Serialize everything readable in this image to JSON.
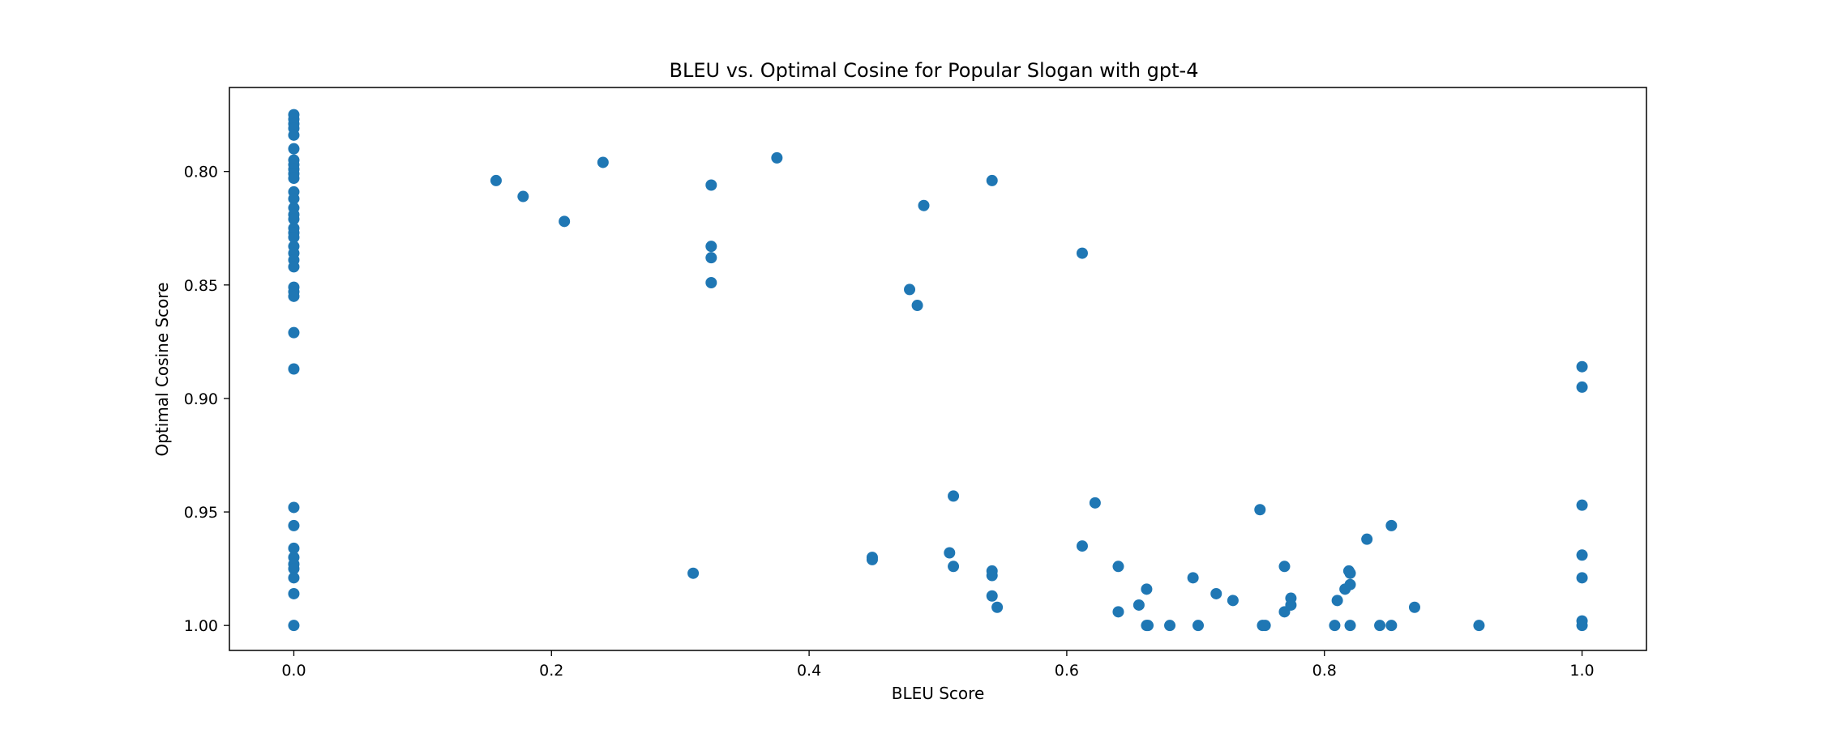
{
  "chart_data": {
    "type": "scatter",
    "title": "BLEU vs. Optimal Cosine for Popular Slogan with gpt-4",
    "xlabel": "BLEU Score",
    "ylabel": "Optimal Cosine Score",
    "xlim": [
      -0.05,
      1.05
    ],
    "ylim": [
      1.011,
      0.763
    ],
    "y_inverted": true,
    "grid": false,
    "point_color": "#1f77b4",
    "x_ticks": [
      {
        "value": 0.0,
        "label": "0.0"
      },
      {
        "value": 0.2,
        "label": "0.2"
      },
      {
        "value": 0.4,
        "label": "0.4"
      },
      {
        "value": 0.6,
        "label": "0.6"
      },
      {
        "value": 0.8,
        "label": "0.8"
      },
      {
        "value": 1.0,
        "label": "1.0"
      }
    ],
    "y_ticks": [
      {
        "value": 0.8,
        "label": "0.80"
      },
      {
        "value": 0.85,
        "label": "0.85"
      },
      {
        "value": 0.9,
        "label": "0.90"
      },
      {
        "value": 0.95,
        "label": "0.95"
      },
      {
        "value": 1.0,
        "label": "1.00"
      }
    ],
    "points": [
      [
        0.0,
        0.775
      ],
      [
        0.0,
        0.777
      ],
      [
        0.0,
        0.779
      ],
      [
        0.0,
        0.781
      ],
      [
        0.0,
        0.784
      ],
      [
        0.0,
        0.79
      ],
      [
        0.0,
        0.795
      ],
      [
        0.0,
        0.797
      ],
      [
        0.0,
        0.799
      ],
      [
        0.0,
        0.801
      ],
      [
        0.0,
        0.803
      ],
      [
        0.0,
        0.809
      ],
      [
        0.0,
        0.812
      ],
      [
        0.0,
        0.816
      ],
      [
        0.0,
        0.819
      ],
      [
        0.0,
        0.821
      ],
      [
        0.0,
        0.825
      ],
      [
        0.0,
        0.827
      ],
      [
        0.0,
        0.829
      ],
      [
        0.0,
        0.833
      ],
      [
        0.0,
        0.836
      ],
      [
        0.0,
        0.839
      ],
      [
        0.0,
        0.842
      ],
      [
        0.0,
        0.851
      ],
      [
        0.0,
        0.853
      ],
      [
        0.0,
        0.855
      ],
      [
        0.0,
        0.871
      ],
      [
        0.0,
        0.887
      ],
      [
        0.0,
        0.948
      ],
      [
        0.0,
        0.956
      ],
      [
        0.0,
        0.966
      ],
      [
        0.0,
        0.97
      ],
      [
        0.0,
        0.973
      ],
      [
        0.0,
        0.975
      ],
      [
        0.0,
        0.979
      ],
      [
        0.0,
        0.986
      ],
      [
        0.0,
        1.0
      ],
      [
        0.157,
        0.804
      ],
      [
        0.178,
        0.811
      ],
      [
        0.21,
        0.822
      ],
      [
        0.24,
        0.796
      ],
      [
        0.31,
        0.977
      ],
      [
        0.324,
        0.806
      ],
      [
        0.324,
        0.833
      ],
      [
        0.324,
        0.838
      ],
      [
        0.324,
        0.849
      ],
      [
        0.375,
        0.794
      ],
      [
        0.449,
        0.97
      ],
      [
        0.449,
        0.971
      ],
      [
        0.478,
        0.852
      ],
      [
        0.484,
        0.859
      ],
      [
        0.489,
        0.815
      ],
      [
        0.509,
        0.968
      ],
      [
        0.512,
        0.943
      ],
      [
        0.512,
        0.974
      ],
      [
        0.542,
        0.804
      ],
      [
        0.542,
        0.976
      ],
      [
        0.542,
        0.978
      ],
      [
        0.542,
        0.987
      ],
      [
        0.546,
        0.992
      ],
      [
        0.612,
        0.836
      ],
      [
        0.612,
        0.965
      ],
      [
        0.622,
        0.946
      ],
      [
        0.64,
        0.974
      ],
      [
        0.64,
        0.994
      ],
      [
        0.656,
        0.991
      ],
      [
        0.662,
        0.984
      ],
      [
        0.662,
        1.0
      ],
      [
        0.663,
        1.0
      ],
      [
        0.68,
        1.0
      ],
      [
        0.698,
        0.979
      ],
      [
        0.702,
        1.0
      ],
      [
        0.716,
        0.986
      ],
      [
        0.729,
        0.989
      ],
      [
        0.75,
        0.949
      ],
      [
        0.752,
        1.0
      ],
      [
        0.754,
        1.0
      ],
      [
        0.769,
        0.974
      ],
      [
        0.769,
        0.994
      ],
      [
        0.774,
        0.988
      ],
      [
        0.774,
        0.991
      ],
      [
        0.808,
        1.0
      ],
      [
        0.81,
        0.989
      ],
      [
        0.816,
        0.984
      ],
      [
        0.819,
        0.976
      ],
      [
        0.82,
        0.977
      ],
      [
        0.82,
        0.982
      ],
      [
        0.82,
        1.0
      ],
      [
        0.833,
        0.962
      ],
      [
        0.843,
        1.0
      ],
      [
        0.852,
        0.956
      ],
      [
        0.852,
        1.0
      ],
      [
        0.87,
        0.992
      ],
      [
        0.92,
        1.0
      ],
      [
        1.0,
        0.886
      ],
      [
        1.0,
        0.895
      ],
      [
        1.0,
        0.947
      ],
      [
        1.0,
        0.969
      ],
      [
        1.0,
        0.979
      ],
      [
        1.0,
        0.998
      ],
      [
        1.0,
        1.0
      ]
    ]
  }
}
